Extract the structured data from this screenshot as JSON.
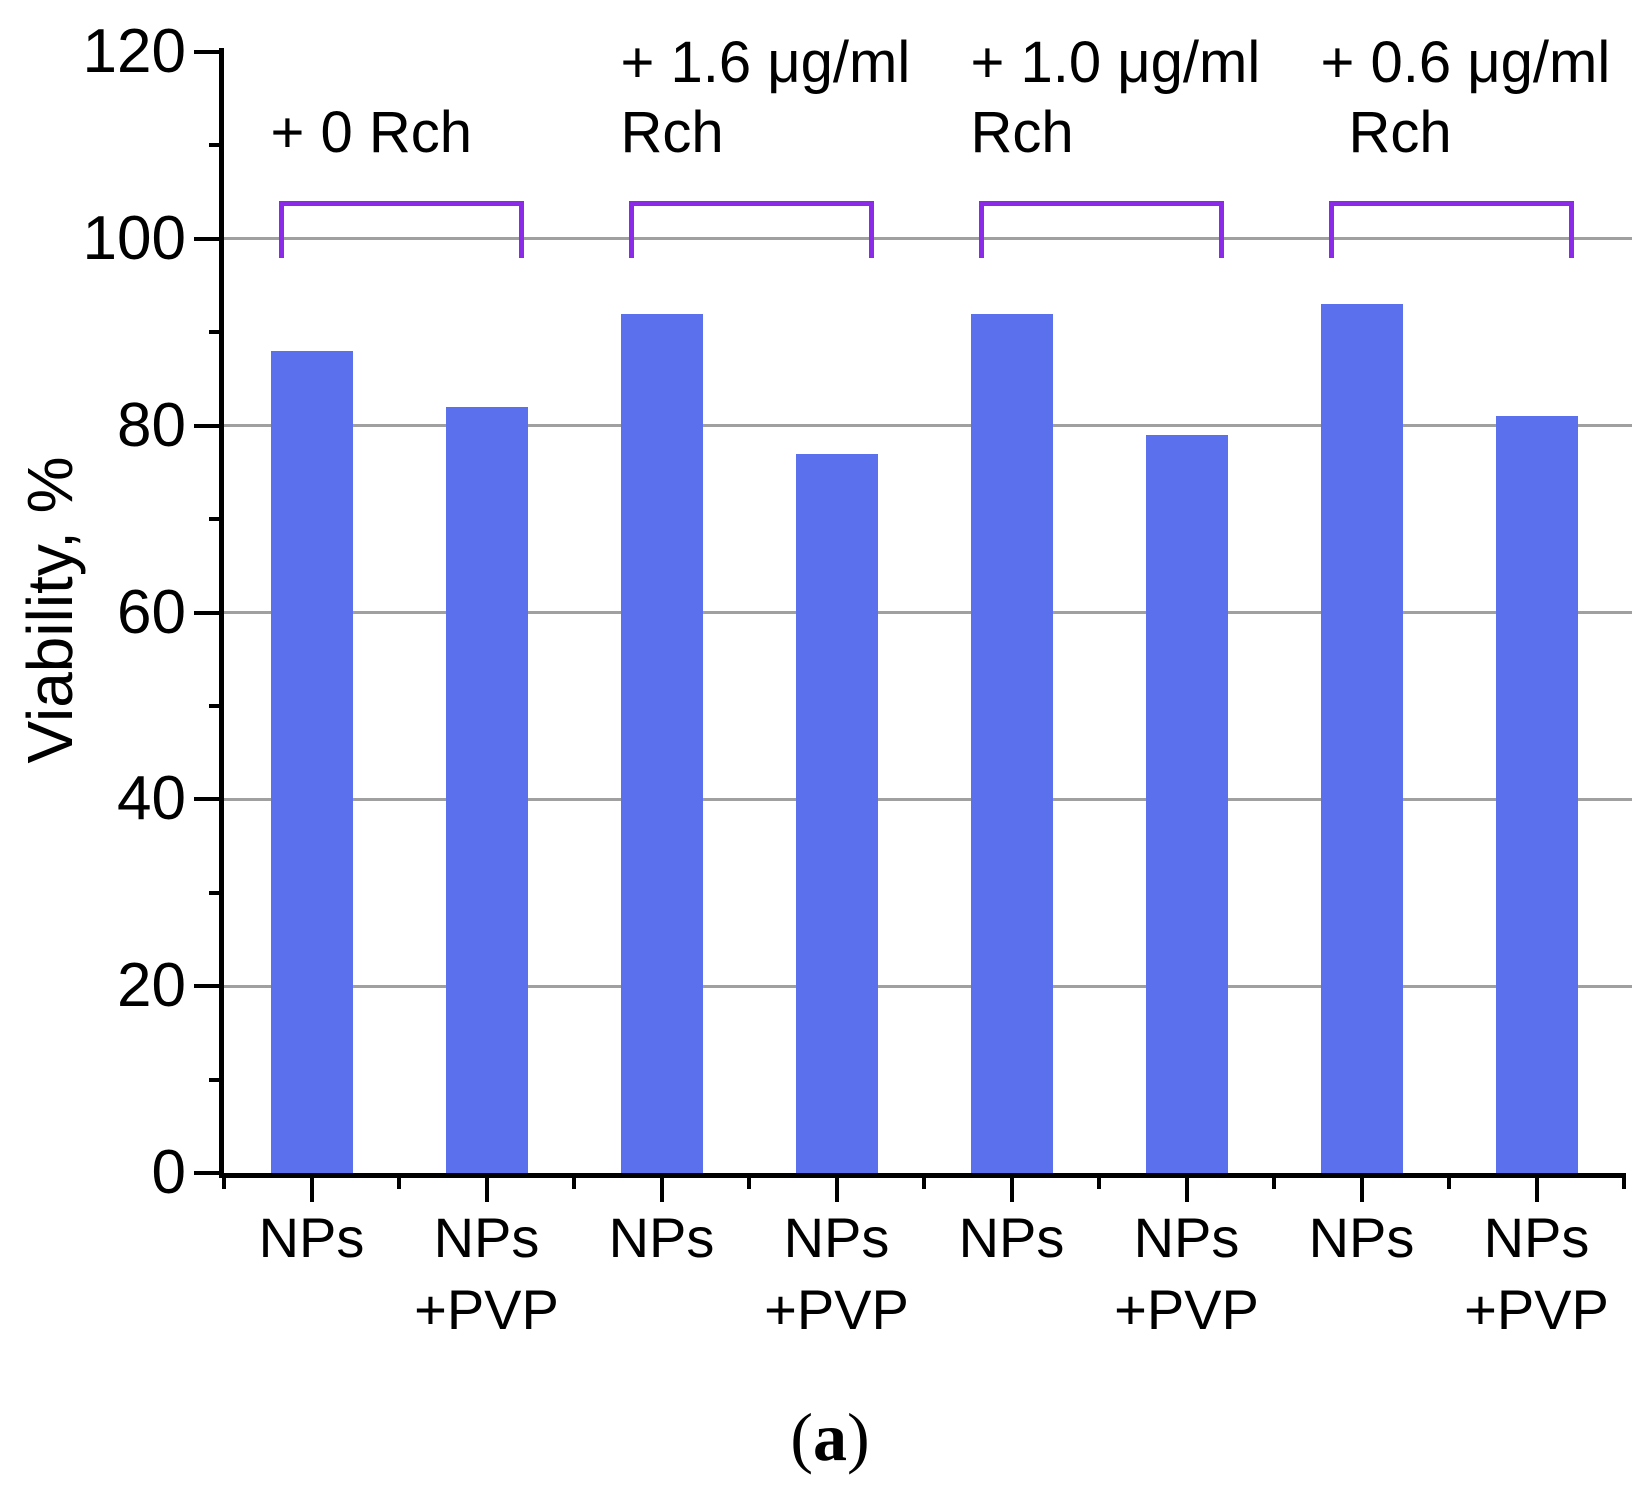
{
  "figure_caption": {
    "open": "(",
    "letter": "a",
    "close": ")"
  },
  "chart_data": {
    "type": "bar",
    "title": "",
    "xlabel": "",
    "ylabel": "Viability, %",
    "ylim": [
      0,
      120
    ],
    "y_major_ticks": [
      0,
      20,
      40,
      60,
      80,
      100,
      120
    ],
    "y_minor_ticks": [
      10,
      30,
      50,
      70,
      90,
      110
    ],
    "gridlines_at": [
      20,
      40,
      60,
      80,
      100
    ],
    "grid": "horizontal-major-gray",
    "legend": "none",
    "bar_color": "#5B70EC",
    "bracket_color": "#8B2BE8",
    "categories": [
      "NPs",
      "NPs +PVP",
      "NPs",
      "NPs +PVP",
      "NPs",
      "NPs +PVP",
      "NPs",
      "NPs +PVP"
    ],
    "values": [
      88,
      82,
      92,
      77,
      92,
      79,
      93,
      81
    ],
    "groups": [
      {
        "annotation_lines": [
          "+ 0 Rch"
        ],
        "bars": [
          {
            "label_lines": [
              "NPs"
            ],
            "value": 88
          },
          {
            "label_lines": [
              "NPs",
              "+PVP"
            ],
            "value": 82
          }
        ]
      },
      {
        "annotation_lines": [
          "+ 1.6 μg/ml",
          "Rch"
        ],
        "bars": [
          {
            "label_lines": [
              "NPs"
            ],
            "value": 92
          },
          {
            "label_lines": [
              "NPs",
              "+PVP"
            ],
            "value": 77
          }
        ]
      },
      {
        "annotation_lines": [
          "+ 1.0 μg/ml",
          "Rch"
        ],
        "bars": [
          {
            "label_lines": [
              "NPs"
            ],
            "value": 92
          },
          {
            "label_lines": [
              "NPs",
              "+PVP"
            ],
            "value": 79
          }
        ]
      },
      {
        "annotation_lines": [
          "+ 0.6 μg/ml",
          "Rch"
        ],
        "bars": [
          {
            "label_lines": [
              "NPs"
            ],
            "value": 93
          },
          {
            "label_lines": [
              "NPs",
              "+PVP"
            ],
            "value": 81
          }
        ]
      }
    ]
  }
}
